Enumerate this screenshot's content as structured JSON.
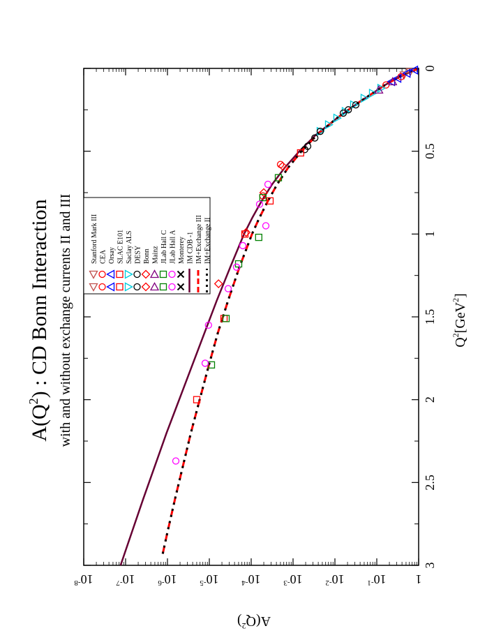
{
  "chart_data": {
    "type": "scatter",
    "orientation": "rotated-90-cw",
    "title": "A(Q",
    "title_sup": "2",
    "title_rest": ") : CD Bonn Interaction",
    "subtitle": "with and without exchange currents II and III",
    "xlabel": "Q",
    "xlabel_sup": "2",
    "xlabel_rest": "[GeV",
    "xlabel_sup2": "2",
    "xlabel_end": "]",
    "ylabel": "A(Q",
    "ylabel_sup": "2",
    "ylabel_end": ")",
    "xlim": [
      0,
      3
    ],
    "ylog_exponent_range": [
      -8,
      0
    ],
    "x_ticks": [
      {
        "value": 0,
        "label": "0"
      },
      {
        "value": 0.5,
        "label": "0.5"
      },
      {
        "value": 1,
        "label": "1"
      },
      {
        "value": 1.5,
        "label": "1.5"
      },
      {
        "value": 2,
        "label": "2"
      },
      {
        "value": 2.5,
        "label": "2.5"
      },
      {
        "value": 3,
        "label": "3"
      }
    ],
    "y_ticks": [
      {
        "exp": 0,
        "base": "1",
        "sup": ""
      },
      {
        "exp": -1,
        "base": "10",
        "sup": "-1"
      },
      {
        "exp": -2,
        "base": "10",
        "sup": "-2"
      },
      {
        "exp": -3,
        "base": "10",
        "sup": "-3"
      },
      {
        "exp": -4,
        "base": "10",
        "sup": "-4"
      },
      {
        "exp": -5,
        "base": "10",
        "sup": "-5"
      },
      {
        "exp": -6,
        "base": "10",
        "sup": "-6"
      },
      {
        "exp": -7,
        "base": "10",
        "sup": "-7"
      },
      {
        "exp": -8,
        "base": "10",
        "sup": "-8"
      }
    ],
    "legend_position": "upper-left (rotated frame)",
    "legend": [
      {
        "label": "Stanford Mark III",
        "marker": "triangle-down",
        "color": "#c0504d"
      },
      {
        "label": "CEA",
        "marker": "circle",
        "color": "#ff0000"
      },
      {
        "label": "Orsay",
        "marker": "triangle-left",
        "color": "#0000ff"
      },
      {
        "label": "SLAC E101",
        "marker": "square",
        "color": "#ff0000"
      },
      {
        "label": "Saclay ALS",
        "marker": "triangle-right",
        "color": "#00ccdd"
      },
      {
        "label": "DESY",
        "marker": "circle",
        "color": "#000000"
      },
      {
        "label": "Bonn",
        "marker": "diamond",
        "color": "#ff0000"
      },
      {
        "label": "Mainz",
        "marker": "triangle-up",
        "color": "#800080"
      },
      {
        "label": "JLab Hall C",
        "marker": "square",
        "color": "#008000"
      },
      {
        "label": "JLab Hall A",
        "marker": "circle",
        "color": "#ff00ff"
      },
      {
        "label": "Monterey",
        "marker": "x",
        "color": "#000000"
      },
      {
        "label": "IM CDB -1",
        "line": "solid",
        "color": "#660033"
      },
      {
        "label": "IM+Exchange III",
        "line": "dashed",
        "color": "#ff0000"
      },
      {
        "label": "IM+Exchange II",
        "line": "dotted",
        "color": "#000000"
      }
    ],
    "series": [
      {
        "name": "IM CDB -1",
        "style": "solid",
        "color": "#660033",
        "x": [
          0,
          0.05,
          0.1,
          0.2,
          0.3,
          0.4,
          0.5,
          0.6,
          0.7,
          0.8,
          0.9,
          1.0,
          1.2,
          1.4,
          1.6,
          1.8,
          2.0,
          2.2,
          2.4,
          2.6,
          2.8,
          3.0
        ],
        "log10y": [
          0,
          -0.45,
          -0.8,
          -1.4,
          -1.95,
          -2.45,
          -2.85,
          -3.2,
          -3.5,
          -3.75,
          -3.97,
          -4.17,
          -4.5,
          -4.82,
          -5.12,
          -5.42,
          -5.72,
          -6.02,
          -6.3,
          -6.58,
          -6.85,
          -7.12
        ]
      },
      {
        "name": "IM+Exchange III",
        "style": "dashed",
        "color": "#ff0000",
        "x": [
          0,
          0.05,
          0.1,
          0.2,
          0.3,
          0.4,
          0.5,
          0.6,
          0.7,
          0.8,
          0.9,
          1.0,
          1.2,
          1.4,
          1.6,
          1.8,
          2.0,
          2.2,
          2.4,
          2.6,
          2.8,
          2.95
        ],
        "log10y": [
          0,
          -0.45,
          -0.8,
          -1.4,
          -1.95,
          -2.42,
          -2.8,
          -3.12,
          -3.38,
          -3.6,
          -3.8,
          -3.98,
          -4.28,
          -4.55,
          -4.8,
          -5.02,
          -5.23,
          -5.44,
          -5.63,
          -5.82,
          -6.0,
          -6.13
        ]
      },
      {
        "name": "IM+Exchange II",
        "style": "dotted",
        "color": "#000000",
        "x": [
          0,
          0.05,
          0.1,
          0.2,
          0.3,
          0.4,
          0.5,
          0.6,
          0.7,
          0.8,
          0.9,
          1.0,
          1.2,
          1.4,
          1.6,
          1.8,
          2.0,
          2.2,
          2.4,
          2.6,
          2.8,
          2.95
        ],
        "log10y": [
          0,
          -0.45,
          -0.8,
          -1.4,
          -1.95,
          -2.42,
          -2.8,
          -3.12,
          -3.38,
          -3.6,
          -3.8,
          -3.98,
          -4.28,
          -4.55,
          -4.8,
          -5.02,
          -5.23,
          -5.44,
          -5.63,
          -5.82,
          -6.0,
          -6.13
        ]
      }
    ],
    "points": [
      {
        "set": "Stanford Mark III",
        "x": 0.02,
        "log10y": -0.2
      },
      {
        "set": "Stanford Mark III",
        "x": 0.04,
        "log10y": -0.35
      },
      {
        "set": "Orsay",
        "x": 0.01,
        "log10y": -0.1
      },
      {
        "set": "Orsay",
        "x": 0.03,
        "log10y": -0.28
      },
      {
        "set": "Orsay",
        "x": 0.06,
        "log10y": -0.5
      },
      {
        "set": "Orsay",
        "x": 0.08,
        "log10y": -0.65
      },
      {
        "set": "CEA",
        "x": 0.05,
        "log10y": -0.42
      },
      {
        "set": "CEA",
        "x": 0.1,
        "log10y": -0.78
      },
      {
        "set": "Saclay ALS",
        "x": 0.12,
        "log10y": -0.9
      },
      {
        "set": "Saclay ALS",
        "x": 0.15,
        "log10y": -1.1
      },
      {
        "set": "Saclay ALS",
        "x": 0.18,
        "log10y": -1.3
      },
      {
        "set": "Saclay ALS",
        "x": 0.22,
        "log10y": -1.55
      },
      {
        "set": "Saclay ALS",
        "x": 0.26,
        "log10y": -1.75
      },
      {
        "set": "Saclay ALS",
        "x": 0.3,
        "log10y": -1.95
      },
      {
        "set": "Saclay ALS",
        "x": 0.34,
        "log10y": -2.15
      },
      {
        "set": "Saclay ALS",
        "x": 0.38,
        "log10y": -2.35
      },
      {
        "set": "DESY",
        "x": 0.22,
        "log10y": -1.5
      },
      {
        "set": "DESY",
        "x": 0.25,
        "log10y": -1.68
      },
      {
        "set": "DESY",
        "x": 0.27,
        "log10y": -1.8
      },
      {
        "set": "DESY",
        "x": 0.38,
        "log10y": -2.35
      },
      {
        "set": "DESY",
        "x": 0.42,
        "log10y": -2.48
      },
      {
        "set": "DESY",
        "x": 0.47,
        "log10y": -2.65
      },
      {
        "set": "DESY",
        "x": 0.49,
        "log10y": -2.72
      },
      {
        "set": "Mainz",
        "x": 0.08,
        "log10y": -0.62
      },
      {
        "set": "Mainz",
        "x": 0.13,
        "log10y": -0.95
      },
      {
        "set": "Bonn",
        "x": 0.59,
        "log10y": -3.25
      },
      {
        "set": "Bonn",
        "x": 0.75,
        "log10y": -3.7
      },
      {
        "set": "Bonn",
        "x": 0.99,
        "log10y": -4.12
      },
      {
        "set": "Bonn",
        "x": 1.3,
        "log10y": -4.78
      },
      {
        "set": "SLAC E101",
        "x": 0.51,
        "log10y": -2.82
      },
      {
        "set": "SLAC E101",
        "x": 0.8,
        "log10y": -3.55
      },
      {
        "set": "SLAC E101",
        "x": 1.0,
        "log10y": -4.15
      },
      {
        "set": "SLAC E101",
        "x": 1.51,
        "log10y": -4.65
      },
      {
        "set": "SLAC E101",
        "x": 2.0,
        "log10y": -5.3
      },
      {
        "set": "CEA",
        "x": 0.58,
        "log10y": -3.3
      },
      {
        "set": "CEA",
        "x": 0.77,
        "log10y": -3.72
      },
      {
        "set": "JLab Hall C",
        "x": 0.66,
        "log10y": -3.35
      },
      {
        "set": "JLab Hall C",
        "x": 0.78,
        "log10y": -3.72
      },
      {
        "set": "JLab Hall C",
        "x": 1.02,
        "log10y": -3.82
      },
      {
        "set": "JLab Hall C",
        "x": 1.18,
        "log10y": -4.3
      },
      {
        "set": "JLab Hall C",
        "x": 1.51,
        "log10y": -4.6
      },
      {
        "set": "JLab Hall C",
        "x": 1.79,
        "log10y": -4.95
      },
      {
        "set": "JLab Hall A",
        "x": 0.7,
        "log10y": -3.6
      },
      {
        "set": "JLab Hall A",
        "x": 0.82,
        "log10y": -3.8
      },
      {
        "set": "JLab Hall A",
        "x": 0.95,
        "log10y": -3.65
      },
      {
        "set": "JLab Hall A",
        "x": 1.07,
        "log10y": -4.2
      },
      {
        "set": "JLab Hall A",
        "x": 1.2,
        "log10y": -4.35
      },
      {
        "set": "JLab Hall A",
        "x": 1.33,
        "log10y": -4.55
      },
      {
        "set": "JLab Hall A",
        "x": 1.55,
        "log10y": -5.02
      },
      {
        "set": "JLab Hall A",
        "x": 1.78,
        "log10y": -5.1
      },
      {
        "set": "JLab Hall A",
        "x": 2.37,
        "log10y": -5.8
      }
    ]
  }
}
